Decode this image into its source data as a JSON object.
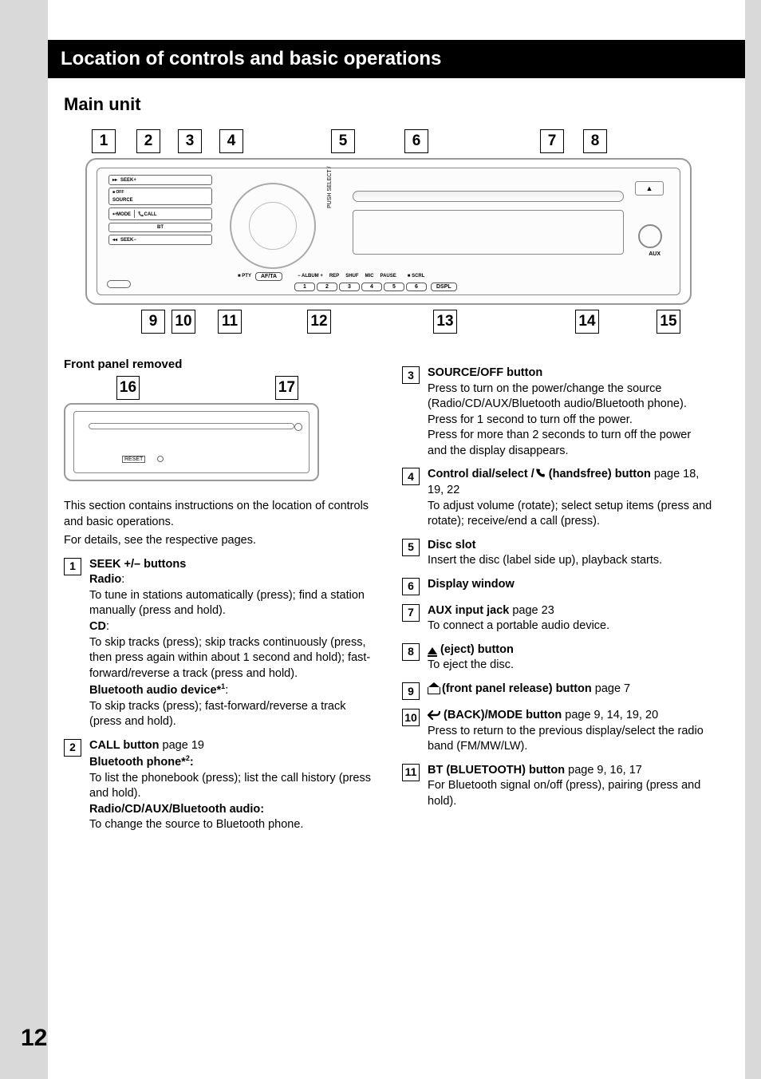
{
  "page_number": "12",
  "header": "Location of controls and basic operations",
  "subheading": "Main unit",
  "diagram": {
    "top_callouts": [
      "1",
      "2",
      "3",
      "4",
      "5",
      "6",
      "7",
      "8"
    ],
    "bottom_callouts": [
      "9",
      "10",
      "11",
      "12",
      "13",
      "14",
      "15"
    ],
    "unit_labels": {
      "seek_plus": "SEEK+",
      "off": "OFF",
      "source": "SOURCE",
      "mode": "MODE",
      "call": "CALL",
      "bt": "BT",
      "seek_minus": "SEEK−",
      "push_select": "PUSH  SELECT /",
      "pty": "PTY",
      "afta": "AF/TA",
      "album_minus": "− ALBUM +",
      "rep": "REP",
      "shuf": "SHUF",
      "mic": "MIC",
      "pause": "PAUSE",
      "scrl": "SCRL",
      "dspl": "DSPL",
      "aux": "AUX",
      "num1": "1",
      "num2": "2",
      "num3": "3",
      "num4": "4",
      "num5": "5",
      "num6": "6"
    }
  },
  "front_panel": {
    "title": "Front panel removed",
    "callouts": [
      "16",
      "17"
    ],
    "reset": "RESET"
  },
  "intro_lines": [
    "This section contains instructions on the location of controls and basic operations.",
    "For details, see the respective pages."
  ],
  "items_left": [
    {
      "n": "1",
      "title": "SEEK +/– buttons",
      "blocks": [
        {
          "bold": "Radio",
          "after": ":",
          "text": "To tune in stations automatically (press); find a station manually (press and hold)."
        },
        {
          "bold": "CD",
          "after": ":",
          "text": "To skip tracks (press); skip tracks continuously (press, then press again within about 1 second and hold); fast-forward/reverse a track (press and hold)."
        },
        {
          "bold": "Bluetooth audio device*",
          "sup": "1",
          "after": ":",
          "text": "To skip tracks (press); fast-forward/reverse a track (press and hold)."
        }
      ]
    },
    {
      "n": "2",
      "title": "CALL button",
      "pages": "page 19",
      "blocks": [
        {
          "bold": "Bluetooth phone*",
          "sup": "2",
          "after": ":",
          "bold_after": true,
          "text": "To list the phonebook (press); list the call history (press and hold)."
        },
        {
          "bold": "Radio/CD/AUX/Bluetooth audio:",
          "text": "To change the source to Bluetooth phone."
        }
      ]
    }
  ],
  "items_right": [
    {
      "n": "3",
      "title": "SOURCE/OFF button",
      "blocks": [
        {
          "text": "Press to turn on the power/change the source (Radio/CD/AUX/Bluetooth audio/Bluetooth phone)."
        },
        {
          "text": "Press for 1 second to turn off the power."
        },
        {
          "text": "Press for more than 2 seconds to turn off the power and the display disappears."
        }
      ]
    },
    {
      "n": "4",
      "title_pre": "Control dial/select /",
      "title_icon": "handsfree",
      "title_post": " (handsfree) button",
      "pages": "page 18, 19, 22",
      "blocks": [
        {
          "text": "To adjust volume (rotate); select setup items (press and rotate); receive/end a call (press)."
        }
      ]
    },
    {
      "n": "5",
      "title": "Disc slot",
      "blocks": [
        {
          "text": "Insert the disc (label side up), playback starts."
        }
      ]
    },
    {
      "n": "6",
      "title": "Display window"
    },
    {
      "n": "7",
      "title": "AUX input jack",
      "pages": "page 23",
      "blocks": [
        {
          "text": "To connect a portable audio device."
        }
      ]
    },
    {
      "n": "8",
      "title_icon": "eject",
      "title_post": " (eject) button",
      "blocks": [
        {
          "text": "To eject the disc."
        }
      ]
    },
    {
      "n": "9",
      "title_icon": "release",
      "title_post": " (front panel release) button",
      "pages": "page 7"
    },
    {
      "n": "10",
      "title_icon": "back",
      "title_post": " (BACK)/MODE button",
      "pages": "page 9, 14, 19, 20",
      "blocks": [
        {
          "text": "Press to return to the previous display/select the radio band (FM/MW/LW)."
        }
      ]
    },
    {
      "n": "11",
      "title": "BT (BLUETOOTH) button",
      "pages": "page 9, 16, 17",
      "blocks": [
        {
          "text": "For Bluetooth signal on/off (press), pairing (press and hold)."
        }
      ]
    }
  ]
}
